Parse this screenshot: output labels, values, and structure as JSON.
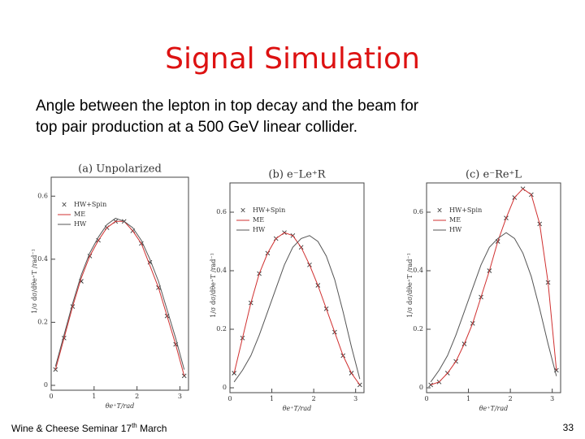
{
  "slide": {
    "title": "Signal Simulation",
    "body": [
      "Angle between the lepton in top decay and the beam for",
      "top pair production at a 500 GeV linear collider."
    ],
    "footer": {
      "text": "Wine & Cheese Seminar 17",
      "sup": "th",
      "text_after": "March"
    },
    "page": "33"
  },
  "chart_data": [
    {
      "type": "line",
      "title": "(a) Unpolarized",
      "xlabel": "θe⁺T/rad",
      "ylabel": "1/σ dσ/dθe⁺T /rad⁻¹",
      "x": [
        0.1,
        0.3,
        0.5,
        0.7,
        0.9,
        1.1,
        1.3,
        1.5,
        1.7,
        1.9,
        2.1,
        2.3,
        2.5,
        2.7,
        2.9,
        3.1
      ],
      "xlim": [
        0,
        3.2
      ],
      "xticks": [
        0,
        1,
        2,
        3
      ],
      "ylim": [
        0,
        0.66
      ],
      "yticks": [
        0,
        0.2,
        0.4,
        0.6
      ],
      "series": [
        {
          "name": "HW+Spin",
          "color": "#333333",
          "marker": "x",
          "values": [
            0.05,
            0.15,
            0.25,
            0.33,
            0.41,
            0.46,
            0.5,
            0.52,
            0.52,
            0.49,
            0.45,
            0.39,
            0.31,
            0.22,
            0.13,
            0.03
          ]
        },
        {
          "name": "ME",
          "color": "#d03030",
          "values": [
            0.05,
            0.15,
            0.25,
            0.34,
            0.41,
            0.46,
            0.5,
            0.52,
            0.52,
            0.49,
            0.45,
            0.38,
            0.31,
            0.22,
            0.13,
            0.03
          ]
        },
        {
          "name": "HW",
          "color": "#555555",
          "values": [
            0.06,
            0.16,
            0.26,
            0.35,
            0.42,
            0.47,
            0.51,
            0.53,
            0.52,
            0.5,
            0.46,
            0.4,
            0.33,
            0.24,
            0.15,
            0.05
          ]
        }
      ]
    },
    {
      "type": "line",
      "title": "(b) e⁻Le⁺R",
      "xlabel": "θe⁺T/rad",
      "ylabel": "1/σ dσ/dθe⁺T /rad⁻¹",
      "x": [
        0.1,
        0.3,
        0.5,
        0.7,
        0.9,
        1.1,
        1.3,
        1.5,
        1.7,
        1.9,
        2.1,
        2.3,
        2.5,
        2.7,
        2.9,
        3.1
      ],
      "xlim": [
        0,
        3.2
      ],
      "xticks": [
        0,
        1,
        2,
        3
      ],
      "ylim": [
        0,
        0.7
      ],
      "yticks": [
        0,
        0.2,
        0.4,
        0.6
      ],
      "series": [
        {
          "name": "HW+Spin",
          "color": "#333333",
          "marker": "x",
          "values": [
            0.05,
            0.17,
            0.29,
            0.39,
            0.46,
            0.51,
            0.53,
            0.52,
            0.48,
            0.42,
            0.35,
            0.27,
            0.19,
            0.11,
            0.05,
            0.01
          ]
        },
        {
          "name": "ME",
          "color": "#d03030",
          "values": [
            0.05,
            0.17,
            0.29,
            0.39,
            0.46,
            0.51,
            0.53,
            0.52,
            0.48,
            0.42,
            0.35,
            0.27,
            0.19,
            0.11,
            0.05,
            0.01
          ]
        },
        {
          "name": "HW",
          "color": "#555555",
          "values": [
            0.02,
            0.06,
            0.11,
            0.18,
            0.26,
            0.34,
            0.42,
            0.48,
            0.51,
            0.52,
            0.5,
            0.45,
            0.37,
            0.26,
            0.14,
            0.03
          ]
        }
      ]
    },
    {
      "type": "line",
      "title": "(c) e⁻Re⁺L",
      "xlabel": "θe⁺T/rad",
      "ylabel": "1/σ dσ/dθe⁺T /rad⁻¹",
      "x": [
        0.1,
        0.3,
        0.5,
        0.7,
        0.9,
        1.1,
        1.3,
        1.5,
        1.7,
        1.9,
        2.1,
        2.3,
        2.5,
        2.7,
        2.9,
        3.1
      ],
      "xlim": [
        0,
        3.2
      ],
      "xticks": [
        0,
        1,
        2,
        3
      ],
      "ylim": [
        0,
        0.7
      ],
      "yticks": [
        0,
        0.2,
        0.4,
        0.6
      ],
      "series": [
        {
          "name": "HW+Spin",
          "color": "#333333",
          "marker": "x",
          "values": [
            0.01,
            0.02,
            0.05,
            0.09,
            0.15,
            0.22,
            0.31,
            0.4,
            0.5,
            0.58,
            0.65,
            0.68,
            0.66,
            0.56,
            0.36,
            0.06
          ]
        },
        {
          "name": "ME",
          "color": "#d03030",
          "values": [
            0.01,
            0.02,
            0.05,
            0.09,
            0.15,
            0.22,
            0.31,
            0.4,
            0.5,
            0.58,
            0.65,
            0.68,
            0.66,
            0.56,
            0.36,
            0.06
          ]
        },
        {
          "name": "HW",
          "color": "#555555",
          "values": [
            0.02,
            0.06,
            0.11,
            0.18,
            0.26,
            0.34,
            0.42,
            0.48,
            0.51,
            0.53,
            0.51,
            0.46,
            0.38,
            0.27,
            0.15,
            0.04
          ]
        }
      ]
    }
  ]
}
